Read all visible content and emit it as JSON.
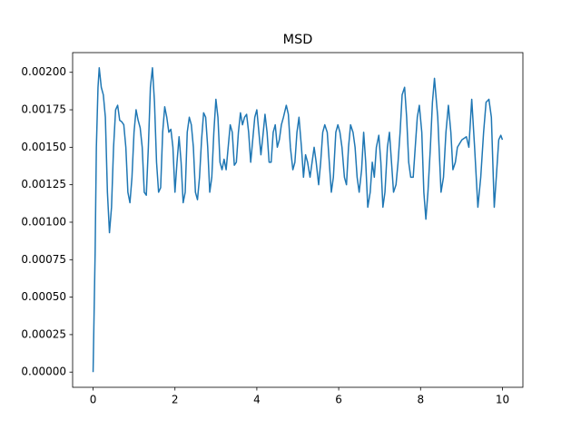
{
  "chart_data": {
    "type": "line",
    "title": "MSD",
    "x": [
      0,
      0.05,
      0.08,
      0.12,
      0.15,
      0.2,
      0.25,
      0.3,
      0.35,
      0.4,
      0.45,
      0.5,
      0.55,
      0.6,
      0.65,
      0.7,
      0.75,
      0.8,
      0.85,
      0.9,
      0.95,
      1.0,
      1.05,
      1.1,
      1.15,
      1.2,
      1.25,
      1.3,
      1.35,
      1.4,
      1.45,
      1.5,
      1.55,
      1.6,
      1.65,
      1.7,
      1.75,
      1.8,
      1.85,
      1.9,
      1.95,
      2.0,
      2.05,
      2.1,
      2.15,
      2.2,
      2.25,
      2.3,
      2.35,
      2.4,
      2.45,
      2.5,
      2.55,
      2.6,
      2.65,
      2.7,
      2.75,
      2.8,
      2.85,
      2.9,
      2.95,
      3.0,
      3.05,
      3.1,
      3.15,
      3.2,
      3.25,
      3.3,
      3.35,
      3.4,
      3.45,
      3.5,
      3.55,
      3.6,
      3.65,
      3.7,
      3.75,
      3.8,
      3.85,
      3.9,
      3.95,
      4.0,
      4.05,
      4.1,
      4.15,
      4.2,
      4.25,
      4.3,
      4.35,
      4.4,
      4.45,
      4.5,
      4.55,
      4.6,
      4.65,
      4.72,
      4.77,
      4.82,
      4.88,
      4.93,
      4.98,
      5.03,
      5.09,
      5.14,
      5.19,
      5.24,
      5.3,
      5.35,
      5.4,
      5.45,
      5.51,
      5.56,
      5.61,
      5.66,
      5.72,
      5.77,
      5.82,
      5.87,
      5.93,
      5.98,
      6.03,
      6.08,
      6.14,
      6.19,
      6.24,
      6.29,
      6.35,
      6.4,
      6.45,
      6.5,
      6.56,
      6.61,
      6.66,
      6.71,
      6.77,
      6.82,
      6.87,
      6.92,
      6.98,
      7.03,
      7.08,
      7.13,
      7.19,
      7.24,
      7.29,
      7.34,
      7.4,
      7.45,
      7.5,
      7.55,
      7.61,
      7.66,
      7.71,
      7.76,
      7.82,
      7.87,
      7.92,
      7.97,
      8.03,
      8.08,
      8.13,
      8.18,
      8.24,
      8.29,
      8.34,
      8.42,
      8.5,
      8.56,
      8.62,
      8.68,
      8.74,
      8.79,
      8.85,
      8.9,
      9.01,
      9.12,
      9.18,
      9.25,
      9.32,
      9.4,
      9.47,
      9.54,
      9.6,
      9.67,
      9.73,
      9.8,
      9.85,
      9.91,
      9.96,
      10
    ],
    "series": [
      {
        "color": "#1f77b4",
        "values": [
          0,
          0.0008,
          0.0015,
          0.0019,
          0.00203,
          0.0019,
          0.00185,
          0.0017,
          0.0012,
          0.00093,
          0.0011,
          0.0015,
          0.00175,
          0.00178,
          0.00168,
          0.00167,
          0.00165,
          0.0015,
          0.0012,
          0.00113,
          0.0013,
          0.0016,
          0.00175,
          0.00168,
          0.00163,
          0.0015,
          0.0012,
          0.00118,
          0.0015,
          0.0019,
          0.00203,
          0.0018,
          0.0014,
          0.0012,
          0.00123,
          0.0016,
          0.00177,
          0.0017,
          0.0016,
          0.00162,
          0.0015,
          0.0012,
          0.0014,
          0.00157,
          0.0014,
          0.00113,
          0.0012,
          0.0016,
          0.0017,
          0.00165,
          0.0015,
          0.0012,
          0.00115,
          0.0013,
          0.00155,
          0.00173,
          0.0017,
          0.0015,
          0.0012,
          0.0013,
          0.0016,
          0.00182,
          0.0017,
          0.0014,
          0.00135,
          0.00142,
          0.00135,
          0.0015,
          0.00165,
          0.0016,
          0.00138,
          0.0014,
          0.0016,
          0.00173,
          0.00165,
          0.0017,
          0.00172,
          0.0016,
          0.0014,
          0.00155,
          0.0017,
          0.00175,
          0.0016,
          0.00145,
          0.00158,
          0.00172,
          0.0016,
          0.0014,
          0.0014,
          0.0016,
          0.00165,
          0.0015,
          0.00155,
          0.00165,
          0.0017,
          0.00178,
          0.00172,
          0.0015,
          0.00135,
          0.0014,
          0.0016,
          0.0017,
          0.0015,
          0.0013,
          0.00145,
          0.0014,
          0.0013,
          0.0014,
          0.0015,
          0.0014,
          0.00125,
          0.0014,
          0.0016,
          0.00165,
          0.0016,
          0.0014,
          0.0012,
          0.0013,
          0.0016,
          0.00165,
          0.0016,
          0.0015,
          0.0013,
          0.00125,
          0.0015,
          0.00165,
          0.0016,
          0.0015,
          0.0013,
          0.0012,
          0.00135,
          0.0016,
          0.0014,
          0.0011,
          0.0012,
          0.0014,
          0.0013,
          0.0015,
          0.00158,
          0.0014,
          0.0011,
          0.0012,
          0.0015,
          0.0016,
          0.0014,
          0.0012,
          0.00125,
          0.0014,
          0.0016,
          0.00185,
          0.0019,
          0.0017,
          0.0014,
          0.0013,
          0.0013,
          0.0015,
          0.0017,
          0.00178,
          0.0016,
          0.0012,
          0.00102,
          0.0012,
          0.0015,
          0.0018,
          0.00196,
          0.0017,
          0.0012,
          0.0013,
          0.0016,
          0.00178,
          0.0016,
          0.00135,
          0.0014,
          0.0015,
          0.00155,
          0.00157,
          0.0015,
          0.00182,
          0.0015,
          0.0011,
          0.0013,
          0.0016,
          0.0018,
          0.00182,
          0.0017,
          0.0011,
          0.0013,
          0.00155,
          0.00158,
          0.00155
        ]
      }
    ],
    "xlim": [
      -0.5,
      10.5
    ],
    "xticks": [
      0,
      2,
      4,
      6,
      8,
      10
    ],
    "ylim": [
      -0.0001015,
      0.0021315
    ],
    "yticks": [
      {
        "value": 0,
        "label": "0.00000"
      },
      {
        "value": 0.00025,
        "label": "0.00025"
      },
      {
        "value": 0.0005,
        "label": "0.00050"
      },
      {
        "value": 0.00075,
        "label": "0.00075"
      },
      {
        "value": 0.001,
        "label": "0.00100"
      },
      {
        "value": 0.00125,
        "label": "0.00125"
      },
      {
        "value": 0.0015,
        "label": "0.00150"
      },
      {
        "value": 0.00175,
        "label": "0.00175"
      },
      {
        "value": 0.002,
        "label": "0.00200"
      }
    ]
  }
}
